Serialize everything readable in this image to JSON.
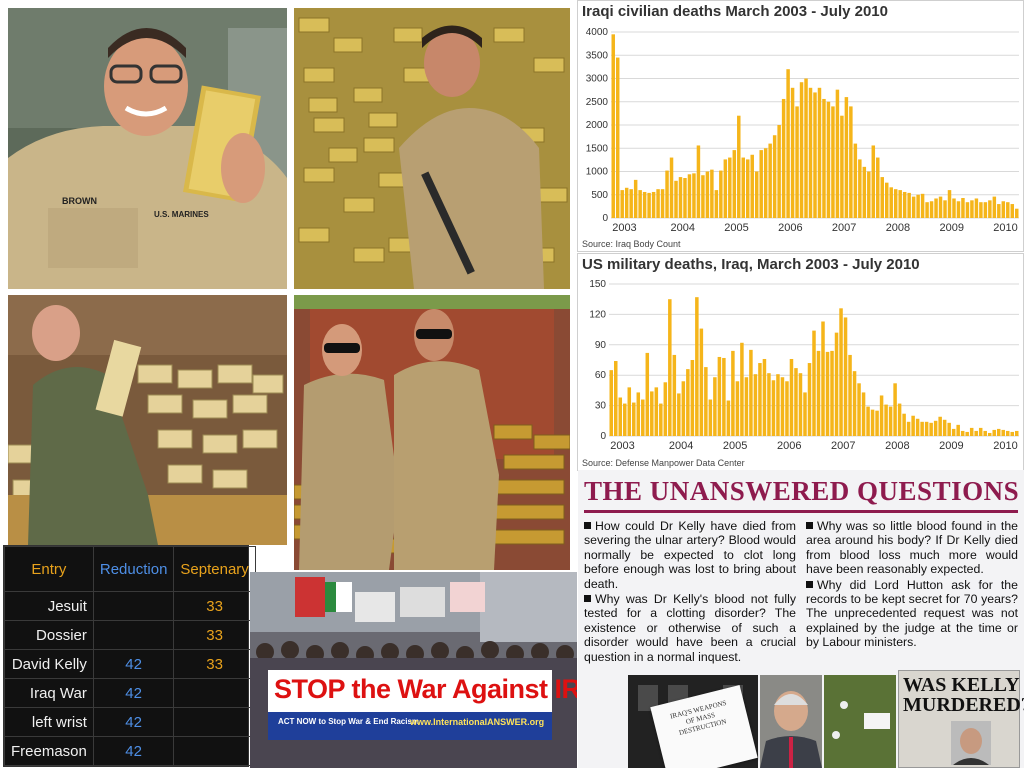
{
  "photos": {
    "top_left": {
      "name_tag": "BROWN",
      "service_tag": "U.S. MARINES"
    }
  },
  "chart1": {
    "title": "Iraqi civilian deaths March 2003 - July 2010",
    "source": "Source: Iraq Body Count",
    "color": "#f5b51a"
  },
  "chart2": {
    "title": "US military deaths, Iraq, March 2003 - July 2010",
    "source": "Source: Defense Manpower Data Center",
    "color": "#f5b51a"
  },
  "chart_data": [
    {
      "type": "bar",
      "title": "Iraqi civilian deaths March 2003 - July 2010",
      "x_ticks": [
        "2003",
        "2004",
        "2005",
        "2006",
        "2007",
        "2008",
        "2009",
        "2010"
      ],
      "y_ticks": [
        0,
        500,
        1000,
        1500,
        2000,
        2500,
        3000,
        3500,
        4000
      ],
      "ylim": [
        0,
        4000
      ],
      "grid": true,
      "start_month": "2003-03",
      "values": [
        3950,
        3450,
        600,
        650,
        620,
        820,
        600,
        560,
        540,
        560,
        620,
        620,
        1020,
        1300,
        800,
        880,
        860,
        940,
        960,
        1560,
        920,
        1000,
        1040,
        600,
        1020,
        1260,
        1300,
        1460,
        2200,
        1300,
        1260,
        1360,
        1000,
        1460,
        1500,
        1600,
        1780,
        2000,
        2560,
        3200,
        2800,
        2400,
        2920,
        3000,
        2800,
        2700,
        2800,
        2560,
        2500,
        2400,
        2760,
        2200,
        2600,
        2400,
        1600,
        1260,
        1100,
        1000,
        1560,
        1300,
        880,
        760,
        660,
        620,
        600,
        560,
        540,
        460,
        500,
        520,
        340,
        360,
        420,
        460,
        380,
        600,
        420,
        360,
        430,
        340,
        380,
        420,
        340,
        340,
        380,
        460,
        300,
        360,
        340,
        300,
        200
      ]
    },
    {
      "type": "bar",
      "title": "US military deaths, Iraq, March 2003 - July 2010",
      "x_ticks": [
        "2003",
        "2004",
        "2005",
        "2006",
        "2007",
        "2008",
        "2009",
        "2010"
      ],
      "y_ticks": [
        0,
        30,
        60,
        90,
        120,
        150
      ],
      "ylim": [
        0,
        150
      ],
      "grid": true,
      "start_month": "2003-03",
      "values": [
        65,
        74,
        38,
        32,
        48,
        33,
        43,
        36,
        82,
        44,
        48,
        32,
        53,
        135,
        80,
        42,
        54,
        66,
        75,
        137,
        106,
        68,
        36,
        58,
        78,
        77,
        35,
        84,
        54,
        92,
        58,
        85,
        61,
        72,
        76,
        62,
        55,
        61,
        58,
        54,
        76,
        67,
        62,
        43,
        72,
        104,
        84,
        113,
        83,
        84,
        102,
        126,
        117,
        80,
        64,
        52,
        43,
        29,
        26,
        25,
        40,
        31,
        29,
        52,
        32,
        22,
        14,
        20,
        17,
        14,
        14,
        13,
        15,
        19,
        16,
        13,
        7,
        11,
        5,
        4,
        8,
        5,
        8,
        5,
        3,
        6,
        7,
        6,
        5,
        4,
        5
      ]
    }
  ],
  "table": {
    "headers": {
      "entry": "Entry",
      "reduction": "Reduction",
      "septenary": "Septenary"
    },
    "rows": [
      {
        "entry": "Jesuit",
        "reduction": "",
        "septenary": "33"
      },
      {
        "entry": "Dossier",
        "reduction": "",
        "septenary": "33"
      },
      {
        "entry": "David Kelly",
        "reduction": "42",
        "septenary": "33"
      },
      {
        "entry": "Iraq War",
        "reduction": "42",
        "septenary": ""
      },
      {
        "entry": "left wrist",
        "reduction": "42",
        "septenary": ""
      },
      {
        "entry": "Freemason",
        "reduction": "42",
        "septenary": ""
      }
    ]
  },
  "protest": {
    "banner_main": "STOP the War Against IRAQ",
    "banner_sub": "ACT NOW to Stop War & End Racism",
    "banner_url": "www.InternationalANSWER.org"
  },
  "news": {
    "headline": "THE UNANSWERED QUESTIONS",
    "col1": [
      "How could Dr Kelly have died from severing the ulnar artery? Blood would normally be expected to clot long before enough was lost to bring about death.",
      "Why was Dr Kelly's blood not fully tested for a clotting disorder? The existence or otherwise of such a disorder would have been a crucial question in a normal inquest."
    ],
    "col2": [
      "Why was so little blood found in the area around his body? If Dr Kelly died from blood loss much more would have been reasonably expected.",
      "Why did Lord Hutton ask for the records to be kept secret for 70 years? The unprecedented request was not explained by the judge at the time or by Labour ministers."
    ],
    "dossier_text": "IRAQ'S WEAPONS OF MASS DESTRUCTION",
    "clipping_headline": "WAS KELLY MURDERED?"
  }
}
